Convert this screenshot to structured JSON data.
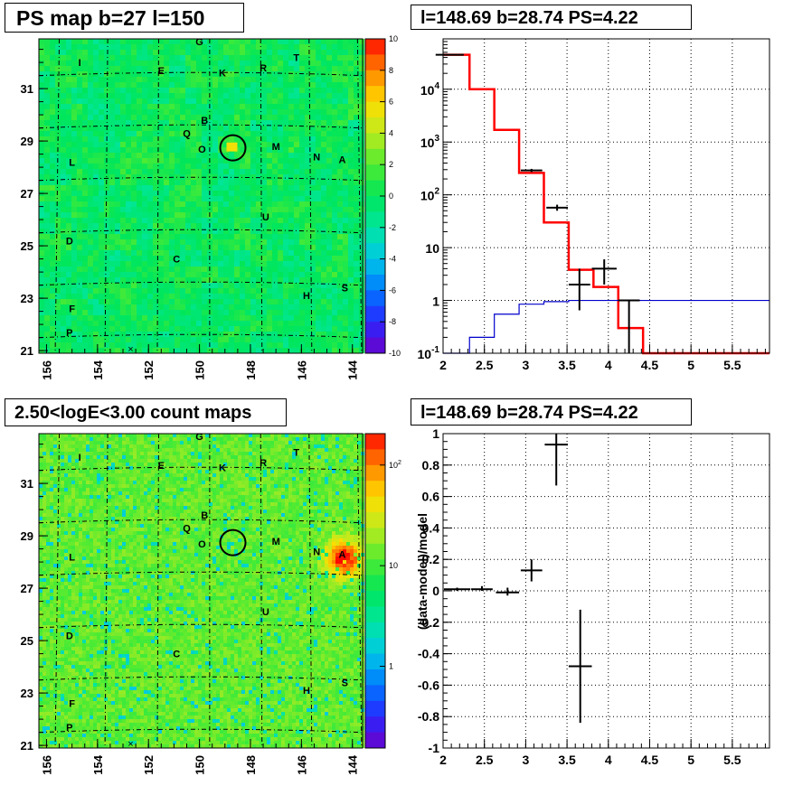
{
  "panels": {
    "ps_map": {
      "title": "PS map b=27 l=150"
    },
    "spectrum": {
      "title": "l=148.69 b=28.74 PS=4.22"
    },
    "count_map": {
      "title": "2.50<logE<3.00 count maps"
    },
    "residual": {
      "title": "l=148.69 b=28.74 PS=4.22"
    }
  },
  "chart_data": [
    {
      "type": "heatmap",
      "title": "PS map b=27 l=150",
      "x_ticks": [
        156,
        154,
        152,
        150,
        148,
        146,
        144
      ],
      "y_ticks": [
        21,
        23,
        25,
        27,
        29,
        31
      ],
      "xlim": [
        156.3,
        143.6
      ],
      "ylim": [
        20.9,
        32.9
      ],
      "colorbar": {
        "min": -10,
        "max": 10,
        "ticks": [
          10,
          8,
          6,
          4,
          2,
          0,
          -2,
          -4,
          -6,
          -8,
          -10
        ]
      },
      "marker_circle": {
        "l": 148.69,
        "b": 28.74
      },
      "source_labels": [
        {
          "text": "G",
          "l": 150.0,
          "b": 32.8
        },
        {
          "text": "I",
          "l": 154.7,
          "b": 32.0
        },
        {
          "text": "T",
          "l": 146.2,
          "b": 32.2
        },
        {
          "text": "E",
          "l": 151.5,
          "b": 31.7
        },
        {
          "text": "K",
          "l": 149.1,
          "b": 31.6
        },
        {
          "text": "R",
          "l": 147.5,
          "b": 31.8
        },
        {
          "text": "B",
          "l": 149.8,
          "b": 29.8
        },
        {
          "text": "Q",
          "l": 150.5,
          "b": 29.3
        },
        {
          "text": "O",
          "l": 149.9,
          "b": 28.7
        },
        {
          "text": "M",
          "l": 147.0,
          "b": 28.8
        },
        {
          "text": "N",
          "l": 145.4,
          "b": 28.4
        },
        {
          "text": "A",
          "l": 144.4,
          "b": 28.3
        },
        {
          "text": "L",
          "l": 155.0,
          "b": 28.2
        },
        {
          "text": "U",
          "l": 147.4,
          "b": 26.1
        },
        {
          "text": "D",
          "l": 155.1,
          "b": 25.2
        },
        {
          "text": "C",
          "l": 150.9,
          "b": 24.5
        },
        {
          "text": "H",
          "l": 145.8,
          "b": 23.1
        },
        {
          "text": "S",
          "l": 144.3,
          "b": 23.4
        },
        {
          "text": "F",
          "l": 155.0,
          "b": 22.6
        },
        {
          "text": "P",
          "l": 155.1,
          "b": 21.7
        }
      ]
    },
    {
      "type": "line",
      "title": "l=148.69 b=28.74 PS=4.22",
      "x_ticks": [
        2,
        2.5,
        3,
        3.5,
        4,
        4.5,
        5,
        5.5
      ],
      "xlim": [
        2.0,
        5.95
      ],
      "ylim": [
        0.1,
        90000
      ],
      "y_scale": "log",
      "y_ticks": [
        "10^4",
        "10^3",
        "10^2",
        "10",
        "1",
        "10^-1"
      ],
      "grid": true,
      "series": [
        {
          "color": "#ff0000",
          "edges": [
            2.0,
            2.32,
            2.62,
            2.92,
            3.22,
            3.52,
            3.82,
            4.12,
            4.42,
            5.95
          ],
          "values": [
            45000,
            10000,
            1700,
            260,
            30,
            3.8,
            1.8,
            0.3,
            0.1
          ]
        },
        {
          "color": "#0000cc",
          "edges": [
            2.0,
            2.32,
            2.62,
            2.92,
            3.22,
            3.52,
            3.82,
            4.12,
            4.42,
            5.95
          ],
          "values": [
            0.1,
            0.2,
            0.55,
            0.85,
            0.95,
            1.0,
            1.0,
            1.0,
            1.0
          ]
        }
      ],
      "points": [
        {
          "x": 2.08,
          "y": 45000,
          "xerr": 0.17,
          "ylow": 44000,
          "yhigh": 46000
        },
        {
          "x": 3.07,
          "y": 290,
          "xerr": 0.13,
          "ylow": 270,
          "yhigh": 310
        },
        {
          "x": 3.38,
          "y": 57,
          "xerr": 0.13,
          "ylow": 50,
          "yhigh": 65
        },
        {
          "x": 3.65,
          "y": 2.0,
          "xerr": 0.13,
          "ylow": 0.65,
          "yhigh": 4.0
        },
        {
          "x": 3.95,
          "y": 4.0,
          "xerr": 0.15,
          "ylow": 2.0,
          "yhigh": 6.0
        },
        {
          "x": 4.25,
          "y": 1.0,
          "xerr": 0.13,
          "ylow": 0.1,
          "yhigh": 1.0
        }
      ]
    },
    {
      "type": "heatmap",
      "title": "2.50<logE<3.00 count maps",
      "x_ticks": [
        156,
        154,
        152,
        150,
        148,
        146,
        144
      ],
      "y_ticks": [
        21,
        23,
        25,
        27,
        29,
        31
      ],
      "xlim": [
        156.3,
        143.6
      ],
      "ylim": [
        20.9,
        32.9
      ],
      "colorbar": {
        "scale": "log",
        "ticks": [
          "10^2",
          "10",
          "1"
        ]
      },
      "hotspot": {
        "l": 144.4,
        "b": 28.2
      },
      "marker_circle": {
        "l": 148.69,
        "b": 28.74
      }
    },
    {
      "type": "scatter",
      "title": "l=148.69 b=28.74 PS=4.22",
      "ylabel": "(data-model)/model",
      "x_ticks": [
        2,
        2.5,
        3,
        3.5,
        4,
        4.5,
        5,
        5.5
      ],
      "y_ticks": [
        1,
        0.8,
        0.6,
        0.4,
        0.2,
        0,
        -0.2,
        -0.4,
        -0.6,
        -0.8,
        -1
      ],
      "xlim": [
        2.0,
        5.95
      ],
      "ylim": [
        -1.0,
        1.0
      ],
      "grid": true,
      "points": [
        {
          "x": 2.17,
          "y": 0.01,
          "xerr": 0.16,
          "ylow": 0.0,
          "yhigh": 0.02
        },
        {
          "x": 2.47,
          "y": 0.01,
          "xerr": 0.13,
          "ylow": 0.0,
          "yhigh": 0.03
        },
        {
          "x": 2.78,
          "y": -0.01,
          "xerr": 0.14,
          "ylow": -0.03,
          "yhigh": 0.02
        },
        {
          "x": 3.07,
          "y": 0.13,
          "xerr": 0.13,
          "ylow": 0.06,
          "yhigh": 0.2
        },
        {
          "x": 3.37,
          "y": 0.93,
          "xerr": 0.14,
          "ylow": 0.67,
          "yhigh": 1.0
        },
        {
          "x": 3.66,
          "y": -0.48,
          "xerr": 0.14,
          "ylow": -0.84,
          "yhigh": -0.12
        }
      ]
    }
  ]
}
